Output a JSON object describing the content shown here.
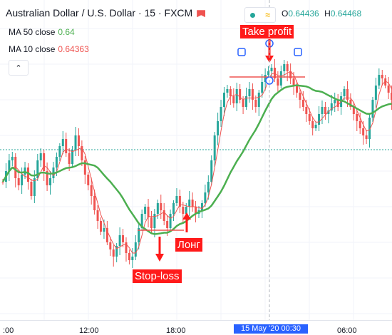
{
  "header": {
    "symbol_title": "Australian Dollar / U.S. Dollar · 15 · FXCM",
    "ohlc": {
      "o_label": "O",
      "o_value": "0.64436",
      "h_label": "H",
      "h_value": "0.64468"
    }
  },
  "indicators": [
    {
      "label": "MA 50 close",
      "value": "0.64",
      "color": "#4caf50"
    },
    {
      "label": "MA 10 close",
      "value": "0.64363",
      "color": "#ef5350"
    }
  ],
  "annotations": {
    "take_profit": "Take profit",
    "long": "Лонг",
    "stop_loss": "Stop-loss"
  },
  "time_axis": {
    "labels": [
      ":00",
      "12:00",
      "18:00",
      "06:00"
    ],
    "crosshair_label": "15 May '20   00:30"
  },
  "colors": {
    "up": "#26a69a",
    "down": "#ef5350",
    "ma50": "#4caf50",
    "ma10": "#ef5350",
    "annotation": "#ff1a1a",
    "crosshair": "#2962ff"
  },
  "icons": [
    "flag-icon",
    "live-dot-icon",
    "waves-icon",
    "chevron-up-icon",
    "arrow-down-icon",
    "arrow-up-icon"
  ]
}
